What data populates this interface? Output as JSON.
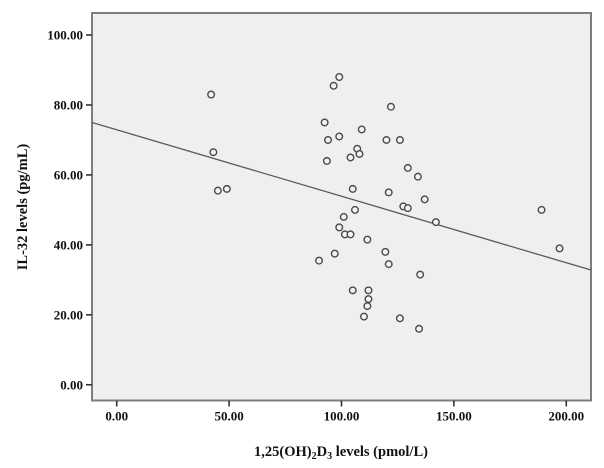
{
  "figure": {
    "kind": "scatter-plot-with-fit-line",
    "background": "#ffffff"
  },
  "chart_data": {
    "type": "scatter",
    "title": "",
    "ylabel": "IL-32 levels (pg/mL)",
    "xlabel_plain": "1,25(OH)2D3 levels (pmol/L)",
    "xlabel_parts": [
      {
        "t": "1,25(OH)",
        "sub": false
      },
      {
        "t": "2",
        "sub": true
      },
      {
        "t": "D",
        "sub": false
      },
      {
        "t": "3",
        "sub": true
      },
      {
        "t": " levels (pmol/L)",
        "sub": false
      }
    ],
    "xlim": [
      -11,
      211
    ],
    "ylim": [
      -4.5,
      106.3
    ],
    "grid": false,
    "legend_position": "none",
    "x_ticks": [
      {
        "value": 0,
        "label": "0.00"
      },
      {
        "value": 50,
        "label": "50.00"
      },
      {
        "value": 100,
        "label": "100.00"
      },
      {
        "value": 150,
        "label": "150.00"
      },
      {
        "value": 200,
        "label": "200.00"
      }
    ],
    "y_ticks": [
      {
        "value": 0,
        "label": "0.00"
      },
      {
        "value": 20,
        "label": "20.00"
      },
      {
        "value": 40,
        "label": "40.00"
      },
      {
        "value": 60,
        "label": "60.00"
      },
      {
        "value": 80,
        "label": "80.00"
      },
      {
        "value": 100,
        "label": "100.00"
      }
    ],
    "points": [
      [
        42,
        83
      ],
      [
        43,
        66.5
      ],
      [
        45,
        55.5
      ],
      [
        49,
        56
      ],
      [
        99,
        88
      ],
      [
        96.5,
        85.5
      ],
      [
        122,
        79.5
      ],
      [
        92.5,
        75
      ],
      [
        109,
        73
      ],
      [
        99,
        71
      ],
      [
        94,
        70
      ],
      [
        120,
        70
      ],
      [
        126,
        70
      ],
      [
        107,
        67.5
      ],
      [
        108,
        66
      ],
      [
        104,
        65
      ],
      [
        93.5,
        64
      ],
      [
        129.5,
        62
      ],
      [
        134,
        59.5
      ],
      [
        105,
        56
      ],
      [
        121,
        55
      ],
      [
        137,
        53
      ],
      [
        127.5,
        51
      ],
      [
        129.5,
        50.5
      ],
      [
        106,
        50
      ],
      [
        189,
        50
      ],
      [
        101,
        48
      ],
      [
        142,
        46.5
      ],
      [
        99,
        45
      ],
      [
        101.5,
        43
      ],
      [
        104,
        43
      ],
      [
        111.5,
        41.5
      ],
      [
        119.5,
        38
      ],
      [
        97,
        37.5
      ],
      [
        197,
        39
      ],
      [
        90,
        35.5
      ],
      [
        121,
        34.5
      ],
      [
        135,
        31.5
      ],
      [
        105,
        27
      ],
      [
        112,
        27
      ],
      [
        112,
        24.5
      ],
      [
        111.5,
        22.5
      ],
      [
        110,
        19.5
      ],
      [
        126,
        19
      ],
      [
        134.5,
        16
      ]
    ],
    "fit_line": {
      "x1": -11,
      "y1": 75.0,
      "x2": 211,
      "y2": 32.8
    },
    "colors": {
      "plot_bg": "#efefef",
      "frame": "#7d7d7d",
      "marker_stroke": "#4a4a4a",
      "marker_fill": "#f3f3f3",
      "fit_line": "#5a5a5a",
      "text": "#111111"
    }
  }
}
